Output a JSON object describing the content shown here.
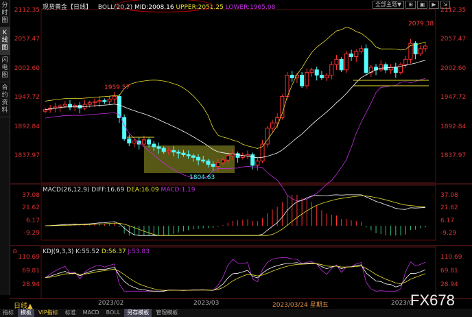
{
  "sidebar": {
    "items": [
      "分时图",
      "K线图",
      "闪电图",
      "合约资料"
    ],
    "active": 1
  },
  "header": {
    "symbol": "现货黄金",
    "period": "【日线】",
    "boll": "BOLL(20,2)",
    "mid": "MID:2008.16",
    "upper": "UPPER:2051.25",
    "lower": "LOWER:1965.08"
  },
  "toolbar": {
    "theme_select": "全部主题▼",
    "icons": [
      "grid-icon",
      "window-icon",
      "play-icon",
      "export-icon"
    ]
  },
  "price_axis": [
    "2112.35",
    "2057.47",
    "2002.60",
    "1947.72",
    "1892.84",
    "1837.97"
  ],
  "annotations": {
    "high": "2079.38",
    "mid_high": "1959.57",
    "low": "1804.63"
  },
  "macd": {
    "title": "MACD(26,12,9)",
    "diff": "DIFF:16.69",
    "dea": "DEA:16.09",
    "macd": "MACD:1.19",
    "axis": [
      "37.08",
      "21.62",
      "6.17",
      "-9.29"
    ]
  },
  "kdj": {
    "title": "KDJ(9,3,3)",
    "k": "K:55.52",
    "d": "D:56.37",
    "j": "J:53.83",
    "axis": [
      "110.69",
      "69.81",
      "28.94"
    ]
  },
  "time_axis": {
    "period": "日线▲",
    "labels": [
      "2023/02",
      "2023/03",
      "2023/03/24 星期五",
      "2023/0"
    ]
  },
  "bottom_tabs": [
    "指标",
    "模板",
    "VIP指标",
    "标准",
    "MACD",
    "BOLL",
    "另存模板",
    "管理模板"
  ],
  "watermark": "FX678",
  "colors": {
    "up": "#ff3232",
    "down": "#54fcfc",
    "boll_mid": "#ffffff",
    "boll_upper": "#e8e030",
    "boll_lower": "#c030e0",
    "axis": "#d33333"
  },
  "chart_data": {
    "type": "candlestick",
    "ylim": [
      1804.63,
      2112.35
    ],
    "closes": [
      1925,
      1928,
      1930,
      1932,
      1935,
      1930,
      1933,
      1928,
      1935,
      1938,
      1940,
      1942,
      1940,
      1945,
      1950,
      1910,
      1870,
      1862,
      1866,
      1860,
      1868,
      1860,
      1855,
      1852,
      1846,
      1848,
      1845,
      1843,
      1840,
      1838,
      1835,
      1830,
      1828,
      1822,
      1818,
      1825,
      1830,
      1838,
      1842,
      1835,
      1838,
      1840,
      1820,
      1828,
      1860,
      1890,
      1900,
      1910,
      1950,
      1990,
      1985,
      1990,
      1970,
      1995,
      2000,
      1990,
      1985,
      1990,
      2010,
      2020,
      2000,
      2030,
      2025,
      2035,
      2040,
      1995,
      2005,
      2000,
      2010,
      2000,
      2005,
      1995,
      2010,
      2020,
      2050,
      2030,
      2040,
      2045
    ]
  }
}
